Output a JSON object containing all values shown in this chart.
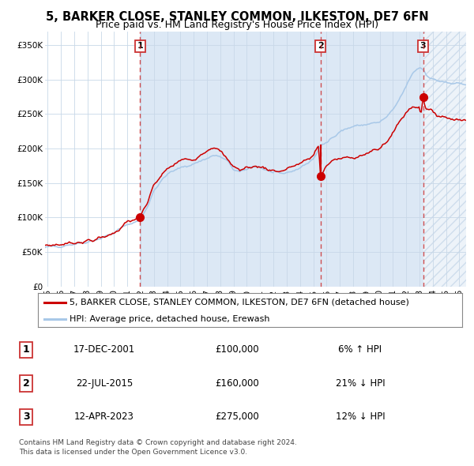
{
  "title": "5, BARKER CLOSE, STANLEY COMMON, ILKESTON, DE7 6FN",
  "subtitle": "Price paid vs. HM Land Registry's House Price Index (HPI)",
  "legend_entry1": "5, BARKER CLOSE, STANLEY COMMON, ILKESTON, DE7 6FN (detached house)",
  "legend_entry2": "HPI: Average price, detached house, Erewash",
  "footer1": "Contains HM Land Registry data © Crown copyright and database right 2024.",
  "footer2": "This data is licensed under the Open Government Licence v3.0.",
  "transactions": [
    {
      "num": 1,
      "date": "17-DEC-2001",
      "price": 100000,
      "pct": "6%",
      "dir": "↑"
    },
    {
      "num": 2,
      "date": "22-JUL-2015",
      "price": 160000,
      "pct": "21%",
      "dir": "↓"
    },
    {
      "num": 3,
      "date": "12-APR-2023",
      "price": 275000,
      "pct": "12%",
      "dir": "↓"
    }
  ],
  "transaction_dates_decimal": [
    2001.96,
    2015.55,
    2023.27
  ],
  "ylim": [
    0,
    370000
  ],
  "xlim_start": 1994.8,
  "xlim_end": 2026.5,
  "yticks": [
    0,
    50000,
    100000,
    150000,
    200000,
    250000,
    300000,
    350000
  ],
  "ytick_labels": [
    "£0",
    "£50K",
    "£100K",
    "£150K",
    "£200K",
    "£250K",
    "£300K",
    "£350K"
  ],
  "xticks": [
    1995,
    1996,
    1997,
    1998,
    1999,
    2000,
    2001,
    2002,
    2003,
    2004,
    2005,
    2006,
    2007,
    2008,
    2009,
    2010,
    2011,
    2012,
    2013,
    2014,
    2015,
    2016,
    2017,
    2018,
    2019,
    2020,
    2021,
    2022,
    2023,
    2024,
    2025,
    2026
  ],
  "hpi_color": "#a8c8e8",
  "price_color": "#cc0000",
  "dashed_line_color": "#cc3333",
  "bg_shaded_color": "#dce8f5",
  "bg_white": "#ffffff",
  "grid_color": "#c8d8e8",
  "title_fontsize": 10.5,
  "subtitle_fontsize": 9,
  "tick_fontsize": 7.5,
  "legend_fontsize": 8,
  "table_fontsize": 8.5,
  "footer_fontsize": 6.5
}
